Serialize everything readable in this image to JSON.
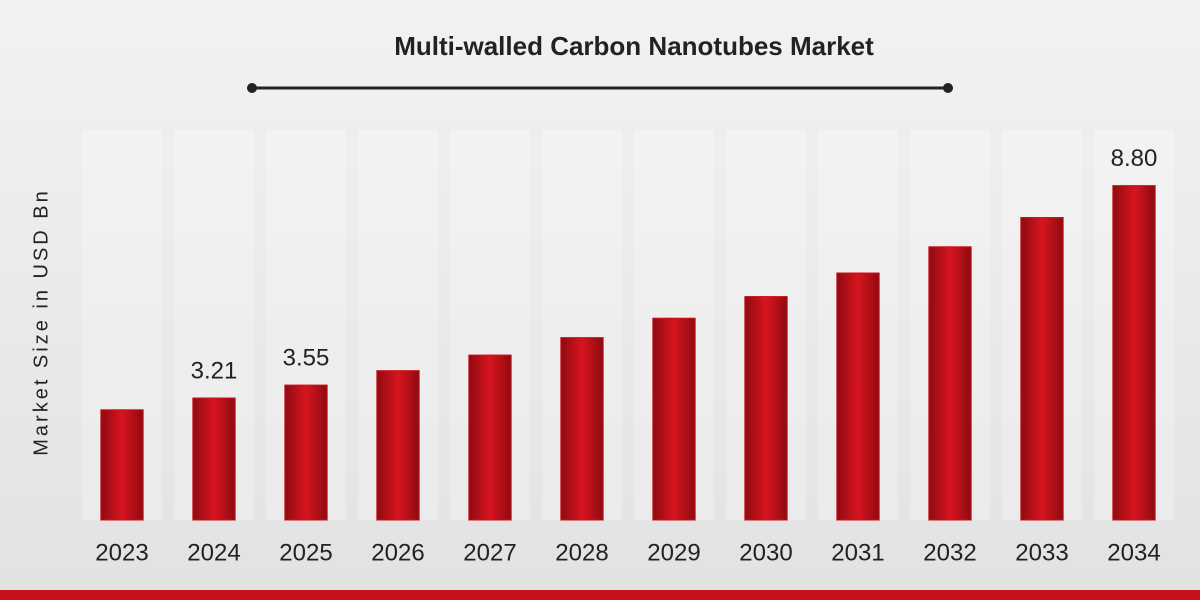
{
  "chart_data": {
    "type": "bar",
    "title": "Multi-walled Carbon Nanotubes Market",
    "y_label": "Market Size in USD Bn",
    "categories": [
      "2023",
      "2024",
      "2025",
      "2026",
      "2027",
      "2028",
      "2029",
      "2030",
      "2031",
      "2032",
      "2033",
      "2034"
    ],
    "values": [
      2.9,
      3.21,
      3.55,
      3.93,
      4.34,
      4.8,
      5.31,
      5.88,
      6.5,
      7.19,
      7.96,
      8.8
    ],
    "value_labels": [
      null,
      "3.21",
      "3.55",
      null,
      null,
      null,
      null,
      null,
      null,
      null,
      null,
      "8.80"
    ],
    "color": "#c8101a",
    "ylim": [
      0,
      10
    ]
  }
}
